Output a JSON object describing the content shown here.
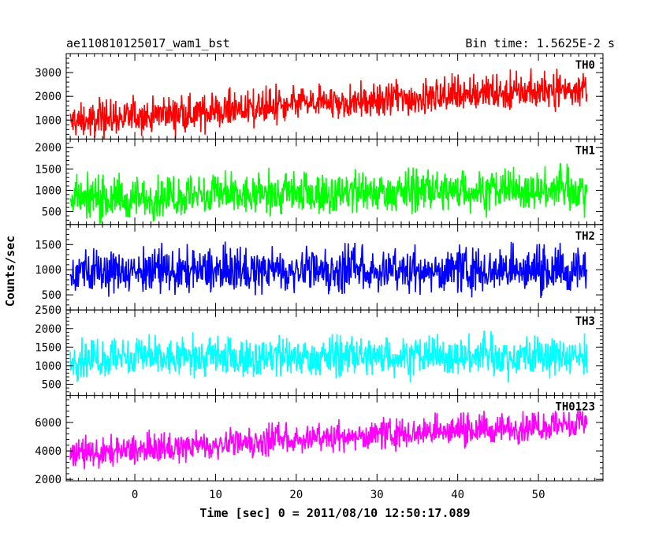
{
  "chart_data": {
    "type": "line",
    "title_left": "ae110810125017_wam1_bst",
    "title_right": "Bin time: 1.5625E-2 s",
    "xlabel": "Time [sec] 0 = 2011/08/10 12:50:17.089",
    "ylabel": "Counts/sec",
    "x_range": [
      -8.5,
      58
    ],
    "x_ticks": [
      0,
      10,
      20,
      30,
      40,
      50
    ],
    "data_x_range": [
      -8,
      56
    ],
    "panels": [
      {
        "name": "TH0",
        "color": "#ff0000",
        "ylim": [
          200,
          3800
        ],
        "yticks": [
          1000,
          2000,
          3000
        ],
        "trend": {
          "x": [
            -8,
            0,
            10,
            20,
            30,
            40,
            56
          ],
          "y": [
            900,
            1100,
            1350,
            1600,
            1800,
            2050,
            2300
          ]
        },
        "spread": 650
      },
      {
        "name": "TH1",
        "color": "#00ff00",
        "ylim": [
          200,
          2200
        ],
        "yticks": [
          500,
          1000,
          1500,
          2000
        ],
        "trend": {
          "x": [
            -8,
            0,
            10,
            20,
            30,
            40,
            56
          ],
          "y": [
            750,
            800,
            850,
            900,
            950,
            980,
            1000
          ]
        },
        "spread": 420
      },
      {
        "name": "TH2",
        "color": "#0000ff",
        "ylim": [
          200,
          1900
        ],
        "yticks": [
          500,
          1000,
          1500
        ],
        "trend": {
          "x": [
            -8,
            0,
            10,
            20,
            30,
            40,
            56
          ],
          "y": [
            950,
            960,
            960,
            970,
            970,
            970,
            970
          ]
        },
        "spread": 380
      },
      {
        "name": "TH3",
        "color": "#00ffff",
        "ylim": [
          200,
          2500
        ],
        "yticks": [
          500,
          1000,
          1500,
          2000,
          2500
        ],
        "trend": {
          "x": [
            -8,
            0,
            10,
            20,
            30,
            40,
            56
          ],
          "y": [
            1150,
            1180,
            1200,
            1220,
            1230,
            1240,
            1250
          ]
        },
        "spread": 460
      },
      {
        "name": "TH0123",
        "color": "#ff00ff",
        "ylim": [
          1900,
          7900
        ],
        "yticks": [
          2000,
          4000,
          6000
        ],
        "trend": {
          "x": [
            -8,
            0,
            10,
            20,
            30,
            40,
            56
          ],
          "y": [
            3700,
            4000,
            4400,
            4800,
            5100,
            5400,
            5800
          ]
        },
        "spread": 900
      }
    ]
  }
}
